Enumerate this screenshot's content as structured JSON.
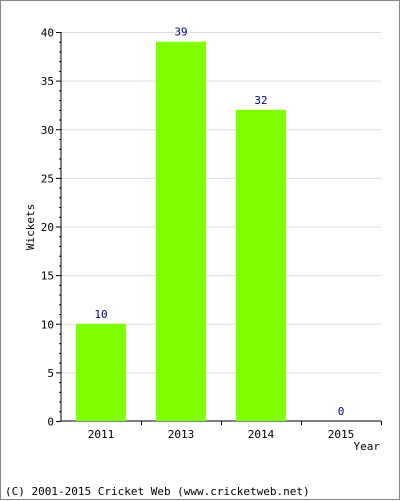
{
  "chart_data": {
    "type": "bar",
    "categories": [
      "2011",
      "2013",
      "2014",
      "2015"
    ],
    "values": [
      10,
      39,
      32,
      0
    ],
    "value_labels": [
      "10",
      "39",
      "32",
      "0"
    ],
    "title": "",
    "xlabel": "Year",
    "ylabel": "Wickets",
    "ylim": [
      0,
      40
    ],
    "yticks": [
      "0",
      "5",
      "10",
      "15",
      "20",
      "25",
      "30",
      "35",
      "40"
    ],
    "ytick_values": [
      0,
      5,
      10,
      15,
      20,
      25,
      30,
      35,
      40
    ],
    "grid": true,
    "bar_color": "#80ff00",
    "value_label_color": "#000080",
    "grid_color": "#dddddd"
  },
  "footer": {
    "copyright": "(C) 2001-2015 Cricket Web (www.cricketweb.net)"
  }
}
